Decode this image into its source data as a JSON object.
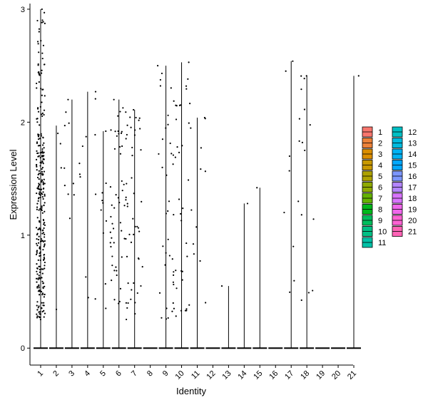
{
  "chart_data": {
    "type": "violin",
    "title": "",
    "xlabel": "Identity",
    "ylabel": "Expression Level",
    "ylim": [
      -0.15,
      3.05
    ],
    "yticks": [
      0,
      1,
      2,
      3
    ],
    "categories": [
      "1",
      "2",
      "3",
      "4",
      "5",
      "6",
      "7",
      "8",
      "9",
      "10",
      "11",
      "12",
      "13",
      "14",
      "15",
      "16",
      "17",
      "18",
      "19",
      "20",
      "21"
    ],
    "max_values": [
      3.0,
      1.97,
      2.2,
      2.27,
      1.92,
      2.2,
      2.11,
      0,
      2.5,
      2.53,
      2.04,
      0,
      0.55,
      1.28,
      1.42,
      0,
      2.54,
      2.41,
      0,
      0,
      2.41
    ],
    "nonzero_counts": [
      300,
      6,
      9,
      9,
      14,
      55,
      40,
      0,
      32,
      40,
      12,
      0,
      1,
      1,
      1,
      0,
      8,
      16,
      0,
      0,
      1
    ],
    "colors": [
      "#F8766D",
      "#EC8239",
      "#DB8E00",
      "#C79800",
      "#AEA200",
      "#8FAA00",
      "#64B200",
      "#00B81B",
      "#00BD5C",
      "#00C085",
      "#00C1A7",
      "#00BFC4",
      "#00BADE",
      "#00B2F3",
      "#00A6FF",
      "#7C96FF",
      "#B385FF",
      "#D874FD",
      "#EF67EB",
      "#FD61D3",
      "#FF63B6"
    ],
    "legend": {
      "position": "right",
      "labels": [
        "1",
        "2",
        "3",
        "4",
        "5",
        "6",
        "7",
        "8",
        "9",
        "10",
        "11",
        "12",
        "13",
        "14",
        "15",
        "16",
        "17",
        "18",
        "19",
        "20",
        "21"
      ]
    }
  }
}
